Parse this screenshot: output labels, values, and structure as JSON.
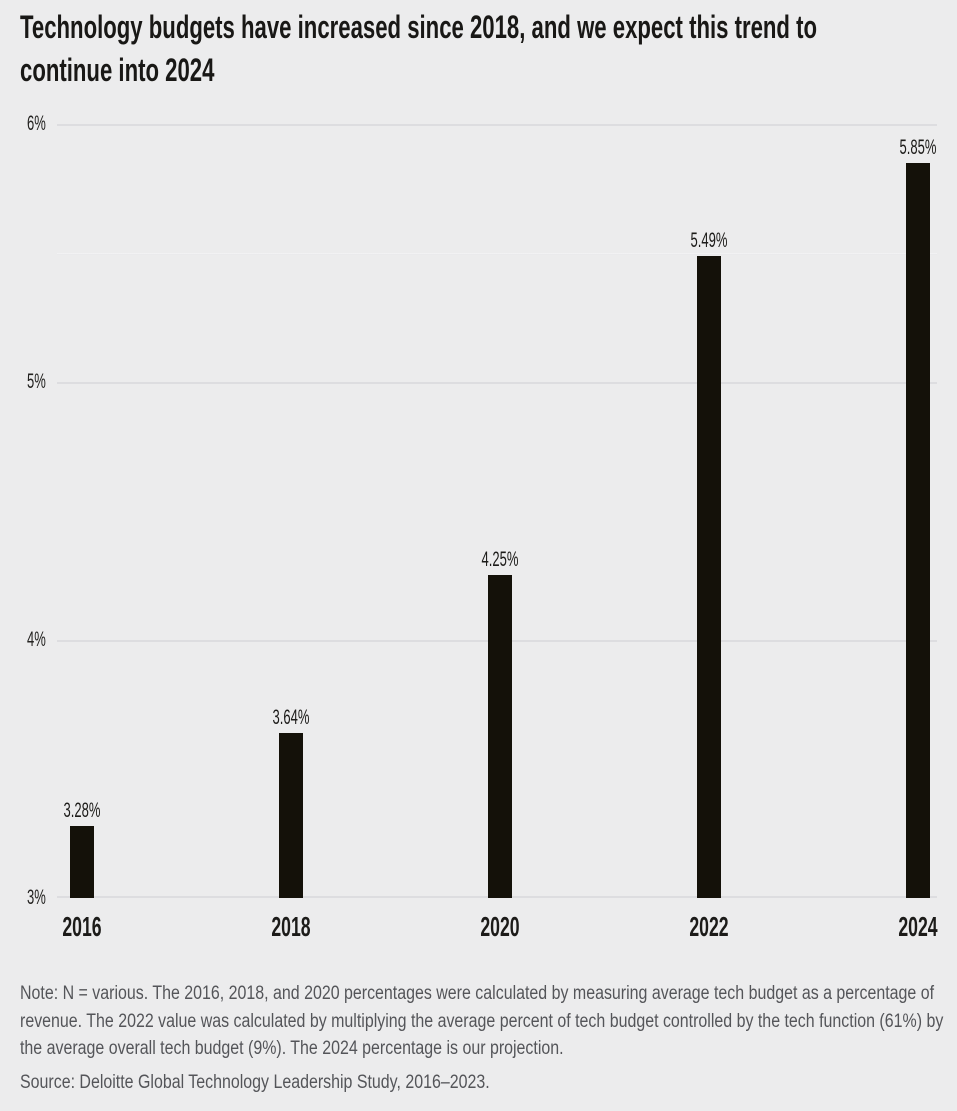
{
  "title": "Technology budgets have increased since 2018, and we expect this trend to continue into 2024",
  "chart_data": {
    "type": "bar",
    "title": "Technology budgets have increased since 2018, and we expect this trend to continue into 2024",
    "categories": [
      "2016",
      "2018",
      "2020",
      "2022",
      "2024"
    ],
    "values": [
      3.28,
      3.64,
      4.25,
      5.49,
      5.85
    ],
    "value_labels": [
      "3.28%",
      "3.64%",
      "4.25%",
      "5.49%",
      "5.85%"
    ],
    "xlabel": "",
    "ylabel": "",
    "ylim": [
      3,
      6
    ],
    "yticks": [
      {
        "value": 3,
        "label": "3%"
      },
      {
        "value": 4,
        "label": "4%"
      },
      {
        "value": 5,
        "label": "5%"
      },
      {
        "value": 6,
        "label": "6%"
      }
    ],
    "minor_gridline_value": 5.5,
    "grid": true,
    "legend_position": "none",
    "bar_color": "#141109",
    "background_color": "#ececed",
    "gridline_color": "#dddde0"
  },
  "note": "Note: N = various. The 2016, 2018, and 2020 percentages were calculated by measuring average tech budget as a percentage of revenue. The 2022 value was calculated by multiplying the average percent of tech budget controlled by the tech function (61%) by the average overall tech budget (9%). The 2024 percentage is our projection.",
  "source": "Source: Deloitte Global Technology Leadership Study, 2016–2023."
}
